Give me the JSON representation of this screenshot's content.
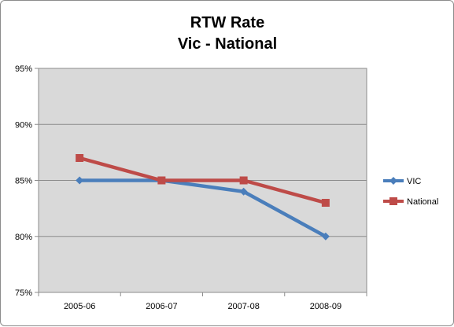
{
  "chart_data": {
    "type": "line",
    "title_lines": [
      "RTW Rate",
      "Vic - National"
    ],
    "categories": [
      "2005-06",
      "2006-07",
      "2007-08",
      "2008-09"
    ],
    "series": [
      {
        "name": "VIC",
        "values": [
          85,
          85,
          84,
          80
        ],
        "color": "#4a7ebb",
        "marker": "diamond"
      },
      {
        "name": "National",
        "values": [
          87,
          85,
          85,
          83
        ],
        "color": "#be4b48",
        "marker": "square"
      }
    ],
    "ylim": [
      75,
      95
    ],
    "yticks": [
      75,
      80,
      85,
      90,
      95
    ],
    "ytick_labels": [
      "75%",
      "80%",
      "85%",
      "90%",
      "95%"
    ],
    "grid": true,
    "plot_background": "#d9d9d9",
    "legend_position": "right"
  }
}
